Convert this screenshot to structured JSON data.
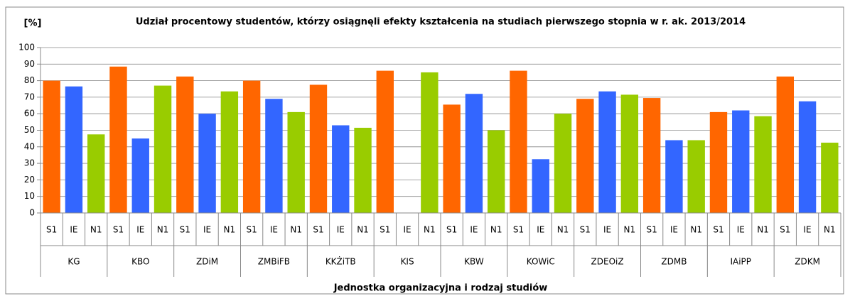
{
  "chart_data": {
    "type": "bar",
    "title": "Udział procentowy studentów, którzy osiągnęli efekty kształcenia na studiach pierwszego stopnia w r. ak. 2013/2014",
    "y_label": "[%]",
    "x_label": "Jednostka organizacyjna i rodzaj studiów",
    "categories": [
      "KG",
      "KBO",
      "ZDiM",
      "ZMBiFB",
      "KKŻiTB",
      "KIS",
      "KBW",
      "KOWiC",
      "ZDEOiZ",
      "ZDMB",
      "IAiPP",
      "ZDKM"
    ],
    "series": [
      {
        "name": "S1",
        "color": "#ff6600",
        "values": [
          80,
          88.5,
          82.5,
          80,
          77.5,
          86,
          65.5,
          86,
          69,
          69.5,
          61,
          82.5
        ]
      },
      {
        "name": "IE",
        "color": "#3366ff",
        "values": [
          76.5,
          45,
          60,
          69,
          53,
          null,
          72,
          32.5,
          73.5,
          44,
          62,
          67.5
        ]
      },
      {
        "name": "N1",
        "color": "#99cc00",
        "values": [
          47.5,
          77,
          73.5,
          61,
          51.5,
          85,
          50,
          60,
          71.5,
          44,
          58.5,
          42.5
        ]
      }
    ],
    "ylim": [
      0,
      100
    ],
    "yticks": [
      0,
      10,
      20,
      30,
      40,
      50,
      60,
      70,
      80,
      90,
      100
    ],
    "grid": true
  }
}
